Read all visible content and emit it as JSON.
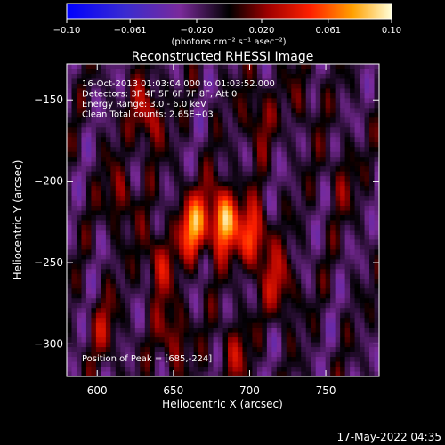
{
  "chart_data": {
    "type": "heatmap",
    "title": "Reconstructed RHESSI Image",
    "xlabel": "Heliocentric X (arcsec)",
    "ylabel": "Heliocentric Y (arcsec)",
    "x_range": [
      580,
      785
    ],
    "y_range": [
      -320,
      -128
    ],
    "x_ticks": [
      600,
      650,
      700,
      750
    ],
    "y_ticks": [
      -150,
      -200,
      -250,
      -300
    ],
    "colorbar": {
      "min": -0.1,
      "max": 0.1,
      "tick_values": [
        -0.1,
        -0.061,
        -0.02,
        0.02,
        0.061,
        0.1
      ],
      "tick_labels": [
        "-0.10",
        "-0.061",
        "-0.020",
        "0.020",
        "0.061",
        "0.10"
      ],
      "unit_label": "(photons cm⁻² s⁻¹ asec⁻²)"
    },
    "annotations": [
      "16-Oct-2013 01:03:04.000 to 01:03:52.000",
      "Detectors: 3F 4F 5F 6F 7F 8F, Att 0",
      "Energy Range: 3.0 - 6.0 keV",
      "Clean     Total counts: 2.65E+03"
    ],
    "peak_label": "Position of Peak = [685,-224]",
    "peak": [
      685,
      -224
    ],
    "bright_sources": [
      {
        "x": 683,
        "y": -224,
        "value": 0.1
      },
      {
        "x": 663,
        "y": -228,
        "value": 0.085
      },
      {
        "x": 703,
        "y": -235,
        "value": 0.07
      },
      {
        "x": 633,
        "y": -160,
        "value": 0.05
      },
      {
        "x": 640,
        "y": -250,
        "value": 0.045
      },
      {
        "x": 720,
        "y": -265,
        "value": 0.045
      },
      {
        "x": 615,
        "y": -210,
        "value": 0.035
      },
      {
        "x": 650,
        "y": -295,
        "value": 0.04
      },
      {
        "x": 705,
        "y": -160,
        "value": 0.035
      },
      {
        "x": 690,
        "y": -305,
        "value": 0.035
      },
      {
        "x": 605,
        "y": -290,
        "value": 0.03
      },
      {
        "x": 760,
        "y": -200,
        "value": 0.025
      },
      {
        "x": 735,
        "y": -150,
        "value": 0.02
      }
    ]
  },
  "timestamp": "17-May-2022 04:35"
}
